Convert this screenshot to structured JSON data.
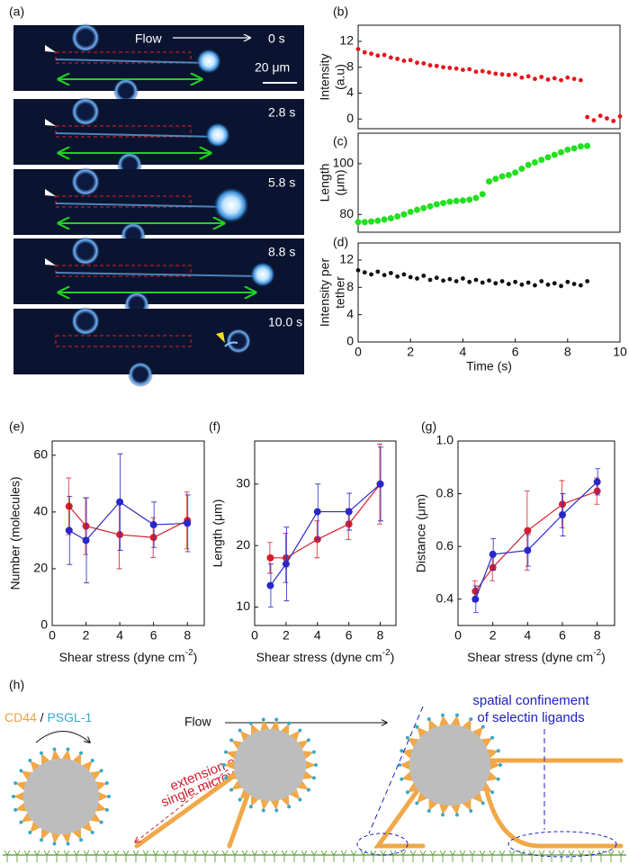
{
  "micrograph": {
    "label": "(a)",
    "flow": "Flow",
    "scale_bar": "20 μm",
    "frames": [
      "0 s",
      "2.8 s",
      "5.8 s",
      "8.8 s",
      "10.0 s"
    ]
  },
  "chart_data": [
    {
      "type": "scatter",
      "label": "(b)",
      "ylabel": [
        "Intensity",
        "(a.u)"
      ],
      "color": "#e8141b",
      "xlim": [
        0,
        10
      ],
      "ylim": [
        -1.5,
        14.5
      ],
      "yticks": [
        0,
        4,
        8,
        12
      ],
      "x": [
        0,
        0.25,
        0.5,
        0.75,
        1,
        1.25,
        1.5,
        1.75,
        2,
        2.25,
        2.5,
        2.75,
        3,
        3.25,
        3.5,
        3.75,
        4,
        4.25,
        4.5,
        4.75,
        5,
        5.25,
        5.5,
        5.75,
        6,
        6.25,
        6.5,
        6.75,
        7,
        7.25,
        7.5,
        7.75,
        8,
        8.25,
        8.5,
        8.75,
        9,
        9.25,
        9.5,
        9.75,
        10
      ],
      "values": [
        10.8,
        10.3,
        10.1,
        9.8,
        9.9,
        9.5,
        9.3,
        9.0,
        9.1,
        8.7,
        8.6,
        8.3,
        8.2,
        8.0,
        7.9,
        7.8,
        7.6,
        7.7,
        7.3,
        7.4,
        7.2,
        7.0,
        6.9,
        6.8,
        6.9,
        6.4,
        6.6,
        6.2,
        6.5,
        6.1,
        6.3,
        6.0,
        6.4,
        6.2,
        6.0,
        0.3,
        -0.2,
        0.5,
        0.1,
        -0.3,
        0.4
      ]
    },
    {
      "type": "scatter",
      "label": "(c)",
      "ylabel": [
        "Length",
        "(μm)"
      ],
      "color": "#22e01f",
      "xlim": [
        0,
        10
      ],
      "ylim": [
        73,
        112
      ],
      "yticks": [
        80,
        100
      ],
      "x": [
        0,
        0.25,
        0.5,
        0.75,
        1,
        1.25,
        1.5,
        1.75,
        2,
        2.25,
        2.5,
        2.75,
        3,
        3.25,
        3.5,
        3.75,
        4,
        4.25,
        4.5,
        4.75,
        5,
        5.25,
        5.5,
        5.75,
        6,
        6.25,
        6.5,
        6.75,
        7,
        7.25,
        7.5,
        7.75,
        8,
        8.25,
        8.5,
        8.75
      ],
      "values": [
        77,
        77,
        77.2,
        77.5,
        78,
        78.5,
        79.2,
        80,
        81,
        81.8,
        82.5,
        83.2,
        84,
        84.5,
        85,
        85.3,
        85.5,
        85.8,
        86.5,
        88,
        93,
        94,
        95,
        95.5,
        96.5,
        98,
        99.5,
        100.5,
        101.5,
        102.5,
        103.5,
        104.5,
        105.5,
        106,
        106.8,
        107
      ]
    },
    {
      "type": "scatter",
      "label": "(d)",
      "ylabel": [
        "Intensity per",
        "tether"
      ],
      "xlabel": "Time (s)",
      "color": "#111111",
      "xlim": [
        0,
        10
      ],
      "xticks": [
        0,
        2,
        4,
        6,
        8,
        10
      ],
      "ylim": [
        0,
        14.5
      ],
      "yticks": [
        0,
        4,
        8,
        12
      ],
      "x": [
        0,
        0.25,
        0.5,
        0.75,
        1,
        1.25,
        1.5,
        1.75,
        2,
        2.25,
        2.5,
        2.75,
        3,
        3.25,
        3.5,
        3.75,
        4,
        4.25,
        4.5,
        4.75,
        5,
        5.25,
        5.5,
        5.75,
        6,
        6.25,
        6.5,
        6.75,
        7,
        7.25,
        7.5,
        7.75,
        8,
        8.25,
        8.5,
        8.75
      ],
      "values": [
        10.5,
        10.2,
        9.9,
        10.3,
        9.8,
        10.1,
        9.6,
        9.9,
        9.5,
        9.3,
        9.7,
        9.1,
        9.4,
        9.0,
        9.2,
        8.9,
        9.3,
        8.8,
        9.1,
        8.7,
        9.0,
        8.6,
        8.9,
        8.5,
        8.8,
        8.4,
        8.7,
        8.3,
        8.9,
        8.4,
        8.6,
        8.2,
        8.8,
        8.5,
        8.3,
        8.9
      ]
    },
    {
      "type": "line",
      "label": "(e)",
      "ylabel": "Number (molecules)",
      "xlabel": {
        "text": "Shear stress (dyne cm",
        "superscript": "-2",
        "suffix": ")"
      },
      "xlim": [
        0,
        9
      ],
      "xticks": [
        0,
        2,
        4,
        6,
        8
      ],
      "ylim": [
        0,
        65
      ],
      "yticks": [
        0,
        20,
        40,
        60
      ],
      "x": [
        1,
        2,
        4,
        6,
        8
      ],
      "series": [
        {
          "color": "#d4202c",
          "values": [
            42,
            35,
            32,
            31,
            37
          ],
          "errors": [
            10,
            10,
            12,
            7,
            10
          ]
        },
        {
          "color": "#2828c8",
          "values": [
            33.5,
            30,
            43.5,
            35.5,
            36
          ],
          "errors": [
            12,
            15,
            17,
            8,
            10
          ]
        }
      ]
    },
    {
      "type": "line",
      "label": "(f)",
      "ylabel": "Length (μm)",
      "xlabel": {
        "text": "Shear stress (dyne cm",
        "superscript": "-2",
        "suffix": ")"
      },
      "xlim": [
        0,
        9
      ],
      "xticks": [
        0,
        2,
        4,
        6,
        8
      ],
      "ylim": [
        7,
        37
      ],
      "yticks": [
        10,
        20,
        30
      ],
      "x": [
        1,
        2,
        4,
        6,
        8
      ],
      "series": [
        {
          "color": "#d4202c",
          "values": [
            18,
            18,
            21,
            23.5,
            30
          ],
          "errors": [
            2.5,
            4,
            3,
            2.5,
            6.5
          ]
        },
        {
          "color": "#2828c8",
          "values": [
            13.5,
            17,
            25.5,
            25.5,
            30
          ],
          "errors": [
            3.5,
            6,
            4.5,
            3,
            6
          ]
        }
      ]
    },
    {
      "type": "line",
      "label": "(g)",
      "ylabel": "Distance (μm)",
      "xlabel": {
        "text": "Shear stress (dyne cm",
        "superscript": "-2",
        "suffix": ")"
      },
      "xlim": [
        0,
        9
      ],
      "xticks": [
        0,
        2,
        4,
        6,
        8
      ],
      "ylim": [
        0.3,
        1.0
      ],
      "yticks": [
        0.4,
        0.6,
        0.8,
        {
          "value": 1,
          "label": "1.0"
        }
      ],
      "x": [
        1,
        2,
        4,
        6,
        8
      ],
      "series": [
        {
          "color": "#d4202c",
          "values": [
            0.43,
            0.52,
            0.66,
            0.76,
            0.81
          ],
          "errors": [
            0.04,
            0.05,
            0.15,
            0.09,
            0.05
          ]
        },
        {
          "color": "#2828c8",
          "values": [
            0.4,
            0.57,
            0.585,
            0.72,
            0.845
          ],
          "errors": [
            0.05,
            0.06,
            0.06,
            0.08,
            0.05
          ]
        }
      ]
    }
  ],
  "schematic": {
    "label": "(h)",
    "cd44": "CD44",
    "separator": " / ",
    "psgl": "PSGL-1",
    "flow": "Flow",
    "extension": [
      "extension of",
      "single microvilli"
    ],
    "confinement": [
      "spatial confinement",
      "of selectin ligands"
    ]
  }
}
